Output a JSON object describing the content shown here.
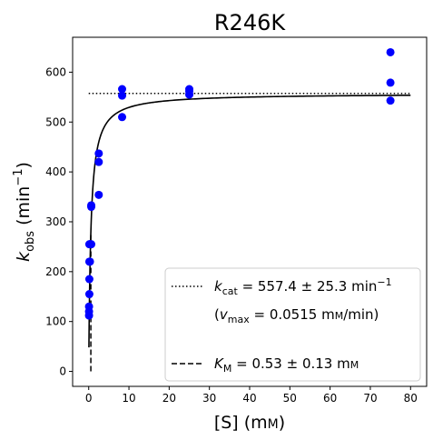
{
  "chart_data": {
    "type": "scatter",
    "title": "R246K",
    "xlabel": {
      "main": "[S] (m",
      "unit_small": "M",
      "close": ")"
    },
    "ylabel": {
      "k": "k",
      "sub": "obs",
      "open": " (min",
      "sup": "−1",
      "close": ")"
    },
    "xlim": [
      -4,
      84
    ],
    "ylim": [
      -30,
      670
    ],
    "xticks": [
      0,
      10,
      20,
      30,
      40,
      50,
      60,
      70,
      80
    ],
    "xtick_labels": [
      "0",
      "10",
      "20",
      "30",
      "40",
      "50",
      "60",
      "70",
      "80"
    ],
    "yticks": [
      0,
      100,
      200,
      300,
      400,
      500,
      600
    ],
    "ytick_labels": [
      "0",
      "100",
      "200",
      "300",
      "400",
      "500",
      "600"
    ],
    "grid": false,
    "legend_position": "lower-right",
    "series": [
      {
        "kind": "scatter",
        "color": "#0000ff",
        "points": [
          [
            0.08,
            112
          ],
          [
            0.08,
            120
          ],
          [
            0.08,
            130
          ],
          [
            0.16,
            155
          ],
          [
            0.16,
            185
          ],
          [
            0.16,
            220
          ],
          [
            0.16,
            255
          ],
          [
            0.31,
            220
          ],
          [
            0.31,
            255
          ],
          [
            0.63,
            255
          ],
          [
            0.63,
            330
          ],
          [
            0.63,
            333
          ],
          [
            2.5,
            354
          ],
          [
            2.5,
            420
          ],
          [
            2.5,
            437
          ],
          [
            8.3,
            510
          ],
          [
            8.3,
            553
          ],
          [
            8.3,
            566
          ],
          [
            25,
            555
          ],
          [
            25,
            562
          ],
          [
            25,
            566
          ],
          [
            75,
            543
          ],
          [
            75,
            579
          ],
          [
            75,
            640
          ]
        ]
      },
      {
        "kind": "fit",
        "style": "solid",
        "color": "#000000",
        "kcat": 557.4,
        "KM": 0.53,
        "x_range": [
          0.05,
          80
        ]
      },
      {
        "kind": "hline",
        "style": "dotted",
        "color": "#000000",
        "y": 557.4,
        "x_range": [
          0,
          80
        ]
      },
      {
        "kind": "vline",
        "style": "dashed",
        "color": "#000000",
        "x": 0.53,
        "y_range": [
          0,
          278.7
        ]
      }
    ],
    "legend": [
      {
        "style": "dotted",
        "k": "k",
        "sub": "cat",
        "text": " = 557.4 ± 25.3 min",
        "sup": "−1"
      },
      {
        "style": "none",
        "open": "(",
        "v": "v",
        "sub": "max",
        "text": " = 0.0515 m",
        "unit_small": "M",
        "close": "/min)"
      },
      {
        "style": "dashed",
        "k": "K",
        "sub": "M",
        "text": " = 0.53 ± 0.13 m",
        "unit_small": "M"
      }
    ]
  }
}
